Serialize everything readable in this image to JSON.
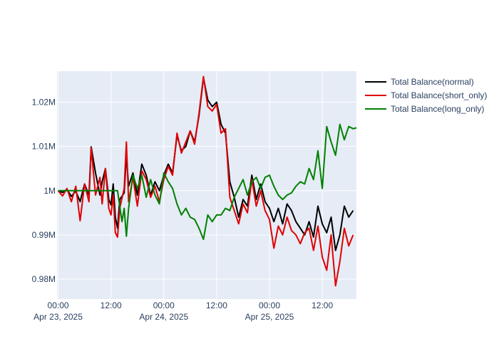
{
  "chart_data": {
    "type": "line",
    "title": "",
    "xlabel": "",
    "ylabel": "",
    "x_range": [
      "2025-04-22T23:45",
      "2025-04-25T19:45"
    ],
    "ylim": [
      975500,
      1027000
    ],
    "y_ticks": [
      {
        "value": 980000,
        "label": "0.98M"
      },
      {
        "value": 990000,
        "label": "0.99M"
      },
      {
        "value": 1000000,
        "label": "1M"
      },
      {
        "value": 1010000,
        "label": "1.01M"
      },
      {
        "value": 1020000,
        "label": "1.02M"
      }
    ],
    "x_ticks": [
      {
        "t": "2025-04-23T00:00",
        "label": "00:00",
        "sublabel": "Apr 23, 2025"
      },
      {
        "t": "2025-04-23T12:00",
        "label": "12:00",
        "sublabel": ""
      },
      {
        "t": "2025-04-24T00:00",
        "label": "00:00",
        "sublabel": "Apr 24, 2025"
      },
      {
        "t": "2025-04-24T12:00",
        "label": "12:00",
        "sublabel": ""
      },
      {
        "t": "2025-04-25T00:00",
        "label": "00:00",
        "sublabel": "Apr 25, 2025"
      },
      {
        "t": "2025-04-25T12:00",
        "label": "12:00",
        "sublabel": ""
      }
    ],
    "grid": true,
    "legend_position": "top-right",
    "series": [
      {
        "name": "Total Balance(normal)",
        "color": "#000000",
        "points": [
          [
            "2025-04-23T00:00",
            1000000
          ],
          [
            "2025-04-23T01:00",
            999600
          ],
          [
            "2025-04-23T02:00",
            1000300
          ],
          [
            "2025-04-23T03:00",
            998700
          ],
          [
            "2025-04-23T04:00",
            999900
          ],
          [
            "2025-04-23T05:00",
            997500
          ],
          [
            "2025-04-23T06:00",
            1001500
          ],
          [
            "2025-04-23T07:00",
            999000
          ],
          [
            "2025-04-23T07:30",
            1009900
          ],
          [
            "2025-04-23T08:30",
            1004000
          ],
          [
            "2025-04-23T09:30",
            999000
          ],
          [
            "2025-04-23T10:00",
            1002000
          ],
          [
            "2025-04-23T10:45",
            1005000
          ],
          [
            "2025-04-23T11:30",
            998000
          ],
          [
            "2025-04-23T12:00",
            996800
          ],
          [
            "2025-04-23T12:30",
            1001500
          ],
          [
            "2025-04-23T13:00",
            994000
          ],
          [
            "2025-04-23T13:30",
            991500
          ],
          [
            "2025-04-23T14:00",
            998000
          ],
          [
            "2025-04-23T15:00",
            999500
          ],
          [
            "2025-04-23T15:30",
            1008000
          ],
          [
            "2025-04-23T16:00",
            1001000
          ],
          [
            "2025-04-23T17:00",
            1004000
          ],
          [
            "2025-04-23T18:00",
            999000
          ],
          [
            "2025-04-23T19:00",
            1006000
          ],
          [
            "2025-04-23T20:00",
            1003500
          ],
          [
            "2025-04-23T21:00",
            999000
          ],
          [
            "2025-04-23T22:00",
            1002000
          ],
          [
            "2025-04-23T23:00",
            1000000
          ],
          [
            "2025-04-24T00:00",
            1003500
          ],
          [
            "2025-04-24T01:00",
            1006000
          ],
          [
            "2025-04-24T02:00",
            1004000
          ],
          [
            "2025-04-24T03:00",
            1012500
          ],
          [
            "2025-04-24T04:00",
            1009000
          ],
          [
            "2025-04-24T05:00",
            1010000
          ],
          [
            "2025-04-24T06:00",
            1013500
          ],
          [
            "2025-04-24T07:00",
            1011000
          ],
          [
            "2025-04-24T08:00",
            1017000
          ],
          [
            "2025-04-24T09:00",
            1025500
          ],
          [
            "2025-04-24T10:00",
            1020500
          ],
          [
            "2025-04-24T11:00",
            1019000
          ],
          [
            "2025-04-24T12:00",
            1020000
          ],
          [
            "2025-04-24T13:00",
            1015000
          ],
          [
            "2025-04-24T14:00",
            1013000
          ],
          [
            "2025-04-24T15:00",
            1002000
          ],
          [
            "2025-04-24T16:00",
            998500
          ],
          [
            "2025-04-24T17:00",
            994000
          ],
          [
            "2025-04-24T18:00",
            998000
          ],
          [
            "2025-04-24T19:00",
            996500
          ],
          [
            "2025-04-24T20:00",
            1003500
          ],
          [
            "2025-04-24T21:00",
            998000
          ],
          [
            "2025-04-24T22:00",
            1001500
          ],
          [
            "2025-04-24T23:00",
            997500
          ],
          [
            "2025-04-25T00:00",
            996000
          ],
          [
            "2025-04-25T01:00",
            993000
          ],
          [
            "2025-04-25T02:00",
            996000
          ],
          [
            "2025-04-25T03:00",
            992500
          ],
          [
            "2025-04-25T04:00",
            997000
          ],
          [
            "2025-04-25T05:00",
            995500
          ],
          [
            "2025-04-25T06:00",
            993000
          ],
          [
            "2025-04-25T07:00",
            991500
          ],
          [
            "2025-04-25T08:00",
            990000
          ],
          [
            "2025-04-25T09:00",
            993000
          ],
          [
            "2025-04-25T10:00",
            989500
          ],
          [
            "2025-04-25T11:00",
            996500
          ],
          [
            "2025-04-25T12:00",
            992500
          ],
          [
            "2025-04-25T13:00",
            990500
          ],
          [
            "2025-04-25T14:00",
            994000
          ],
          [
            "2025-04-25T15:00",
            986500
          ],
          [
            "2025-04-25T16:00",
            990000
          ],
          [
            "2025-04-25T17:00",
            996500
          ],
          [
            "2025-04-25T18:00",
            994000
          ],
          [
            "2025-04-25T19:00",
            995500
          ]
        ]
      },
      {
        "name": "Total Balance(short_only)",
        "color": "#e00000",
        "points": [
          [
            "2025-04-23T00:00",
            1000000
          ],
          [
            "2025-04-23T01:00",
            998800
          ],
          [
            "2025-04-23T02:00",
            1000500
          ],
          [
            "2025-04-23T03:00",
            997500
          ],
          [
            "2025-04-23T04:00",
            1001000
          ],
          [
            "2025-04-23T05:00",
            993200
          ],
          [
            "2025-04-23T06:00",
            1001500
          ],
          [
            "2025-04-23T07:00",
            997500
          ],
          [
            "2025-04-23T07:30",
            1009700
          ],
          [
            "2025-04-23T08:30",
            999000
          ],
          [
            "2025-04-23T09:30",
            1003000
          ],
          [
            "2025-04-23T10:00",
            997000
          ],
          [
            "2025-04-23T10:45",
            1005000
          ],
          [
            "2025-04-23T11:30",
            996000
          ],
          [
            "2025-04-23T12:00",
            994500
          ],
          [
            "2025-04-23T12:30",
            999000
          ],
          [
            "2025-04-23T13:00",
            990500
          ],
          [
            "2025-04-23T13:30",
            989500
          ],
          [
            "2025-04-23T14:00",
            996000
          ],
          [
            "2025-04-23T15:00",
            1000500
          ],
          [
            "2025-04-23T15:30",
            1011000
          ],
          [
            "2025-04-23T16:00",
            997500
          ],
          [
            "2025-04-23T17:00",
            1003000
          ],
          [
            "2025-04-23T18:00",
            996500
          ],
          [
            "2025-04-23T19:00",
            1004500
          ],
          [
            "2025-04-23T20:00",
            1002500
          ],
          [
            "2025-04-23T21:00",
            998500
          ],
          [
            "2025-04-23T22:00",
            1001000
          ],
          [
            "2025-04-23T23:00",
            997500
          ],
          [
            "2025-04-24T00:00",
            1002500
          ],
          [
            "2025-04-24T01:00",
            1005500
          ],
          [
            "2025-04-24T02:00",
            1003500
          ],
          [
            "2025-04-24T03:00",
            1013000
          ],
          [
            "2025-04-24T04:00",
            1008500
          ],
          [
            "2025-04-24T05:00",
            1011000
          ],
          [
            "2025-04-24T06:00",
            1013500
          ],
          [
            "2025-04-24T07:00",
            1010500
          ],
          [
            "2025-04-24T08:00",
            1017500
          ],
          [
            "2025-04-24T09:00",
            1025800
          ],
          [
            "2025-04-24T10:00",
            1019000
          ],
          [
            "2025-04-24T11:00",
            1018000
          ],
          [
            "2025-04-24T12:00",
            1019500
          ],
          [
            "2025-04-24T13:00",
            1013000
          ],
          [
            "2025-04-24T14:00",
            1014000
          ],
          [
            "2025-04-24T15:00",
            998500
          ],
          [
            "2025-04-24T16:00",
            995500
          ],
          [
            "2025-04-24T17:00",
            992500
          ],
          [
            "2025-04-24T18:00",
            997000
          ],
          [
            "2025-04-24T19:00",
            995000
          ],
          [
            "2025-04-24T20:00",
            1002500
          ],
          [
            "2025-04-24T21:00",
            996500
          ],
          [
            "2025-04-24T22:00",
            1000000
          ],
          [
            "2025-04-24T23:00",
            995500
          ],
          [
            "2025-04-25T00:00",
            993500
          ],
          [
            "2025-04-25T01:00",
            987000
          ],
          [
            "2025-04-25T02:00",
            992000
          ],
          [
            "2025-04-25T03:00",
            990000
          ],
          [
            "2025-04-25T04:00",
            994000
          ],
          [
            "2025-04-25T05:00",
            991000
          ],
          [
            "2025-04-25T06:00",
            990000
          ],
          [
            "2025-04-25T07:00",
            988000
          ],
          [
            "2025-04-25T08:00",
            990500
          ],
          [
            "2025-04-25T09:00",
            991500
          ],
          [
            "2025-04-25T10:00",
            986500
          ],
          [
            "2025-04-25T11:00",
            992000
          ],
          [
            "2025-04-25T12:00",
            985000
          ],
          [
            "2025-04-25T13:00",
            982000
          ],
          [
            "2025-04-25T14:00",
            990000
          ],
          [
            "2025-04-25T15:00",
            978500
          ],
          [
            "2025-04-25T16:00",
            984000
          ],
          [
            "2025-04-25T17:00",
            991500
          ],
          [
            "2025-04-25T18:00",
            987500
          ],
          [
            "2025-04-25T19:00",
            990000
          ]
        ]
      },
      {
        "name": "Total Balance(long_only)",
        "color": "#008000",
        "points": [
          [
            "2025-04-23T00:00",
            1000000
          ],
          [
            "2025-04-23T02:00",
            1000000
          ],
          [
            "2025-04-23T04:00",
            1000000
          ],
          [
            "2025-04-23T06:00",
            1000000
          ],
          [
            "2025-04-23T08:00",
            1000000
          ],
          [
            "2025-04-23T10:00",
            1000000
          ],
          [
            "2025-04-23T12:00",
            1000000
          ],
          [
            "2025-04-23T13:30",
            1000000
          ],
          [
            "2025-04-23T14:00",
            996500
          ],
          [
            "2025-04-23T14:30",
            993000
          ],
          [
            "2025-04-23T15:00",
            996000
          ],
          [
            "2025-04-23T15:30",
            989700
          ],
          [
            "2025-04-23T16:00",
            996000
          ],
          [
            "2025-04-23T17:00",
            1003500
          ],
          [
            "2025-04-23T18:00",
            1000500
          ],
          [
            "2025-04-23T19:00",
            1003500
          ],
          [
            "2025-04-23T20:00",
            998500
          ],
          [
            "2025-04-23T21:00",
            1002500
          ],
          [
            "2025-04-23T22:00",
            999000
          ],
          [
            "2025-04-23T23:00",
            997000
          ],
          [
            "2025-04-24T00:00",
            1004000
          ],
          [
            "2025-04-24T01:00",
            1002000
          ],
          [
            "2025-04-24T02:00",
            1000500
          ],
          [
            "2025-04-24T03:00",
            997000
          ],
          [
            "2025-04-24T04:00",
            994500
          ],
          [
            "2025-04-24T05:00",
            996000
          ],
          [
            "2025-04-24T06:00",
            994000
          ],
          [
            "2025-04-24T07:00",
            993500
          ],
          [
            "2025-04-24T08:00",
            991500
          ],
          [
            "2025-04-24T09:00",
            989000
          ],
          [
            "2025-04-24T10:00",
            994500
          ],
          [
            "2025-04-24T11:00",
            993000
          ],
          [
            "2025-04-24T12:00",
            994500
          ],
          [
            "2025-04-24T13:00",
            994500
          ],
          [
            "2025-04-24T14:00",
            996000
          ],
          [
            "2025-04-24T15:00",
            995500
          ],
          [
            "2025-04-24T16:00",
            998500
          ],
          [
            "2025-04-24T17:00",
            1000500
          ],
          [
            "2025-04-24T18:00",
            1002500
          ],
          [
            "2025-04-24T19:00",
            999000
          ],
          [
            "2025-04-24T20:00",
            1002000
          ],
          [
            "2025-04-24T21:00",
            1003000
          ],
          [
            "2025-04-24T22:00",
            1000500
          ],
          [
            "2025-04-24T23:00",
            1003000
          ],
          [
            "2025-04-25T00:00",
            1003500
          ],
          [
            "2025-04-25T01:00",
            1001000
          ],
          [
            "2025-04-25T02:00",
            999000
          ],
          [
            "2025-04-25T03:00",
            998000
          ],
          [
            "2025-04-25T04:00",
            999000
          ],
          [
            "2025-04-25T05:00",
            999500
          ],
          [
            "2025-04-25T06:00",
            1001000
          ],
          [
            "2025-04-25T07:00",
            1002000
          ],
          [
            "2025-04-25T08:00",
            1001500
          ],
          [
            "2025-04-25T09:00",
            1005000
          ],
          [
            "2025-04-25T10:00",
            1002500
          ],
          [
            "2025-04-25T11:00",
            1009000
          ],
          [
            "2025-04-25T12:00",
            1000500
          ],
          [
            "2025-04-25T13:00",
            1014500
          ],
          [
            "2025-04-25T14:00",
            1011000
          ],
          [
            "2025-04-25T15:00",
            1008000
          ],
          [
            "2025-04-25T16:00",
            1015000
          ],
          [
            "2025-04-25T17:00",
            1011500
          ],
          [
            "2025-04-25T18:00",
            1014500
          ],
          [
            "2025-04-25T19:00",
            1014000
          ],
          [
            "2025-04-25T19:45",
            1014200
          ]
        ]
      }
    ]
  }
}
